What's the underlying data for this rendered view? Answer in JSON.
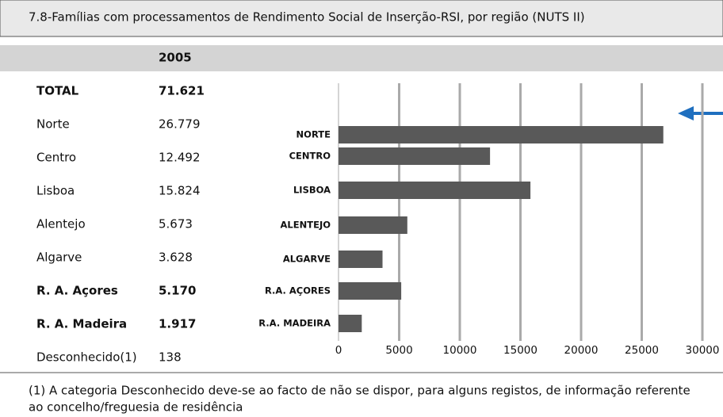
{
  "title": "7.8-Famílias com processamentos de Rendimento Social de Inserção-RSI, por região (NUTS II)",
  "table": {
    "header": "2005",
    "rows": [
      {
        "label": "TOTAL",
        "value": "71.621",
        "bold": true
      },
      {
        "label": "Norte",
        "value": "26.779",
        "bold": false
      },
      {
        "label": "Centro",
        "value": "12.492",
        "bold": false
      },
      {
        "label": "Lisboa",
        "value": "15.824",
        "bold": false
      },
      {
        "label": "Alentejo",
        "value": "5.673",
        "bold": false
      },
      {
        "label": "Algarve",
        "value": "3.628",
        "bold": false
      },
      {
        "label": "R. A. Açores",
        "value": "5.170",
        "bold": true
      },
      {
        "label": "R. A. Madeira",
        "value": "1.917",
        "bold": true
      },
      {
        "label": "Desconhecido(1)",
        "value": "138",
        "bold": false
      }
    ]
  },
  "chart_data": {
    "type": "hbar",
    "categories": [
      "NORTE",
      "CENTRO",
      "LISBOA",
      "ALENTEJO",
      "ALGARVE",
      "R.A. AÇORES",
      "R.A. MADEIRA"
    ],
    "values": [
      26779,
      12492,
      15824,
      5673,
      3628,
      5170,
      1917
    ],
    "color": "#595959",
    "xlim": [
      0,
      30000
    ],
    "xticks": [
      0,
      5000,
      10000,
      15000,
      20000,
      25000,
      30000
    ],
    "grid": true
  },
  "footnote": [
    "(1) A categoria Desconhecido deve-se ao facto de não se dispor, para alguns registos, de informação referente",
    "ao concelho/freguesia de residência"
  ]
}
